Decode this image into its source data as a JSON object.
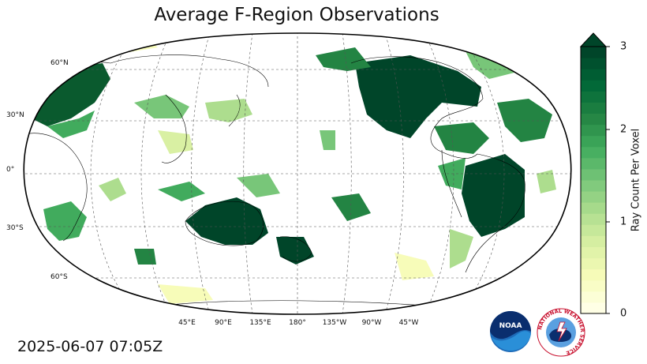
{
  "title": "Average F-Region Observations",
  "timestamp": "2025-06-07 07:05Z",
  "lat_labels": [
    "60°N",
    "30°N",
    "0°",
    "30°S",
    "60°S"
  ],
  "lon_labels": [
    "45°E",
    "90°E",
    "135°E",
    "180°",
    "135°W",
    "90°W",
    "45°W"
  ],
  "colorbar": {
    "label": "Ray Count Per Voxel",
    "ticks": [
      "0",
      "1",
      "2",
      "3"
    ],
    "min": 0,
    "max": 3,
    "extend": "max",
    "colors": [
      "#ffffe5",
      "#f7fcb9",
      "#d9f0a3",
      "#addd8e",
      "#78c679",
      "#41ab5d",
      "#238443",
      "#006837",
      "#004529"
    ]
  },
  "map": {
    "projection": "Robinson",
    "central_longitude": 180,
    "ocean_color": "#ffffff",
    "coastline_color": "#000000",
    "gridlines": "dashed"
  },
  "logos": {
    "noaa": "NOAA",
    "nws": "NATIONAL WEATHER SERVICE"
  }
}
